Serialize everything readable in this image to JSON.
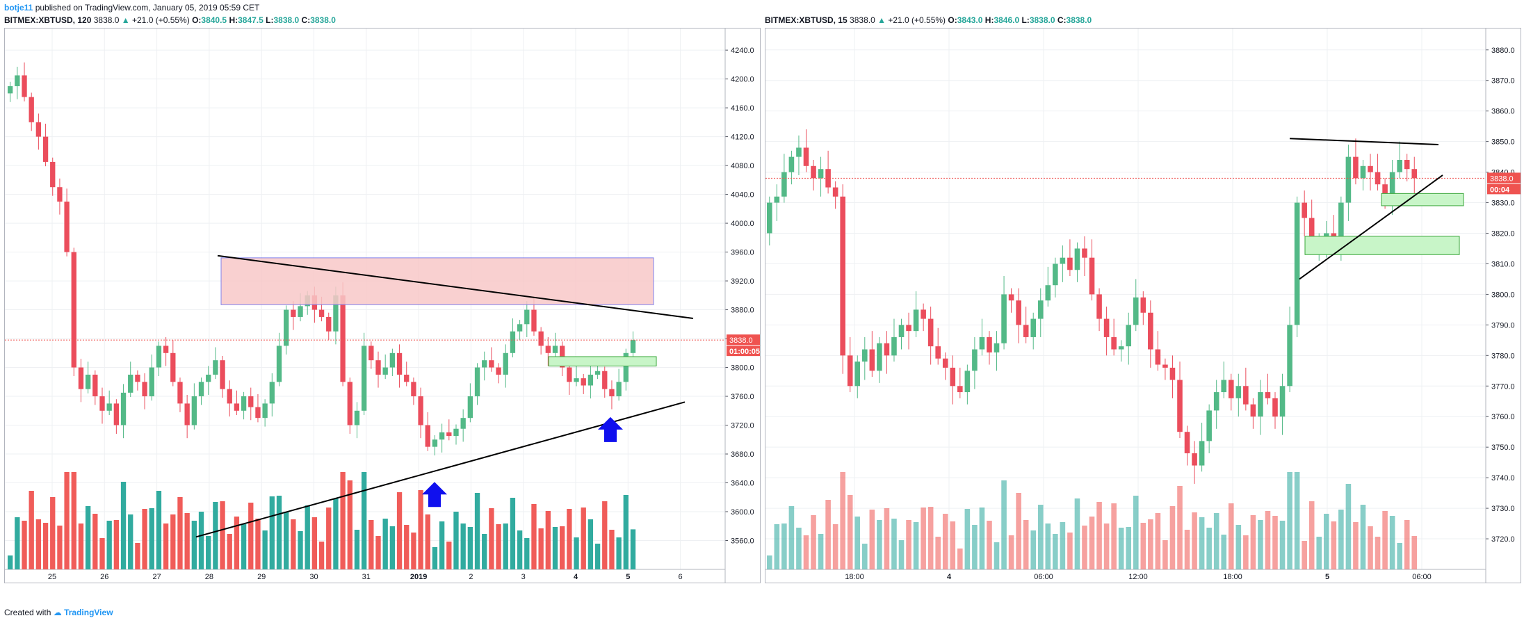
{
  "publication": {
    "author": "botje11",
    "text": "published on TradingView.com, January 05, 2019 05:59 CET"
  },
  "footer": {
    "created_with": "Created with",
    "brand": "TradingView"
  },
  "colors": {
    "up": "#26a69a",
    "down": "#ef5350",
    "up_body": "#53b987",
    "down_body": "#eb4d5c",
    "resistance_zone": "#f8c8c8",
    "support_zone": "#c8f5c8",
    "arrow": "#1010ee"
  },
  "chart_data": [
    {
      "type": "candlestick",
      "symbol": "BITMEX:XBTUSD",
      "interval": "120",
      "last": "3838.0",
      "change": "+21.0 (+0.55%)",
      "ohlc": {
        "O": "3840.5",
        "H": "3847.5",
        "L": "3838.0",
        "C": "3838.0"
      },
      "price_label": "3838.0",
      "countdown": "01:00:05",
      "ylim": [
        3520,
        4270
      ],
      "y_ticks": [
        "4240.0",
        "4200.0",
        "4160.0",
        "4120.0",
        "4080.0",
        "4040.0",
        "4000.0",
        "3960.0",
        "3920.0",
        "3880.0",
        "3840.0",
        "3800.0",
        "3760.0",
        "3720.0",
        "3680.0",
        "3640.0",
        "3600.0",
        "3560.0"
      ],
      "x_ticks": [
        "25",
        "26",
        "27",
        "28",
        "29",
        "30",
        "31",
        "2019",
        "2",
        "3",
        "4",
        "5",
        "6"
      ],
      "resistance_zone": {
        "price_top": 3952,
        "price_bottom": 3887
      },
      "support_zone": {
        "price_top": 3815,
        "price_bottom": 3802
      },
      "trendlines": [
        {
          "from_price": 3955,
          "to_price": 3868
        },
        {
          "from_price": 3565,
          "to_price": 3752
        }
      ],
      "arrows": [
        "up",
        "up"
      ],
      "candles_close": [
        4190,
        4205,
        4175,
        4140,
        4120,
        4085,
        4050,
        4030,
        3960,
        3800,
        3770,
        3790,
        3760,
        3740,
        3750,
        3720,
        3765,
        3790,
        3780,
        3760,
        3800,
        3830,
        3820,
        3780,
        3750,
        3720,
        3760,
        3780,
        3790,
        3810,
        3770,
        3750,
        3740,
        3760,
        3745,
        3730,
        3750,
        3780,
        3830,
        3880,
        3870,
        3885,
        3900,
        3880,
        3870,
        3850,
        3900,
        3780,
        3720,
        3740,
        3830,
        3810,
        3790,
        3800,
        3820,
        3790,
        3780,
        3760,
        3720,
        3690,
        3700,
        3710,
        3705,
        3715,
        3730,
        3760,
        3800,
        3810,
        3800,
        3790,
        3820,
        3850,
        3860,
        3880,
        3850,
        3830,
        3820,
        3830,
        3800,
        3780,
        3785,
        3775,
        3790,
        3795,
        3770,
        3760,
        3780,
        3820,
        3838
      ]
    },
    {
      "type": "candlestick",
      "symbol": "BITMEX:XBTUSD",
      "interval": "15",
      "last": "3838.0",
      "change": "+21.0 (+0.55%)",
      "ohlc": {
        "O": "3843.0",
        "H": "3846.0",
        "L": "3838.0",
        "C": "3838.0"
      },
      "price_label": "3838.0",
      "countdown": "00:04",
      "ylim": [
        3710,
        3887
      ],
      "y_ticks": [
        "3880.0",
        "3870.0",
        "3860.0",
        "3850.0",
        "3840.0",
        "3830.0",
        "3820.0",
        "3810.0",
        "3800.0",
        "3790.0",
        "3780.0",
        "3770.0",
        "3760.0",
        "3750.0",
        "3740.0",
        "3730.0",
        "3720.0"
      ],
      "x_ticks": [
        "18:00",
        "4",
        "06:00",
        "12:00",
        "18:00",
        "5",
        "06:00"
      ],
      "support_zones": [
        {
          "price_top": 3833,
          "price_bottom": 3829
        },
        {
          "price_top": 3819,
          "price_bottom": 3813
        }
      ],
      "trendlines": [
        {
          "from_price": 3851,
          "to_price": 3849
        },
        {
          "from_price": 3805,
          "to_price": 3839
        }
      ],
      "candles_close": [
        3830,
        3832,
        3840,
        3845,
        3848,
        3842,
        3838,
        3841,
        3835,
        3832,
        3780,
        3770,
        3778,
        3782,
        3775,
        3784,
        3780,
        3786,
        3790,
        3788,
        3795,
        3792,
        3783,
        3779,
        3776,
        3770,
        3768,
        3775,
        3782,
        3786,
        3781,
        3784,
        3800,
        3798,
        3790,
        3786,
        3792,
        3798,
        3803,
        3810,
        3812,
        3808,
        3815,
        3812,
        3800,
        3792,
        3786,
        3782,
        3783,
        3790,
        3799,
        3794,
        3782,
        3777,
        3776,
        3772,
        3755,
        3748,
        3744,
        3752,
        3762,
        3768,
        3772,
        3766,
        3770,
        3764,
        3760,
        3768,
        3766,
        3760,
        3770,
        3790,
        3830,
        3825,
        3815,
        3818,
        3820,
        3815,
        3830,
        3845,
        3838,
        3842,
        3840,
        3836,
        3832,
        3840,
        3844,
        3841,
        3838
      ]
    }
  ]
}
